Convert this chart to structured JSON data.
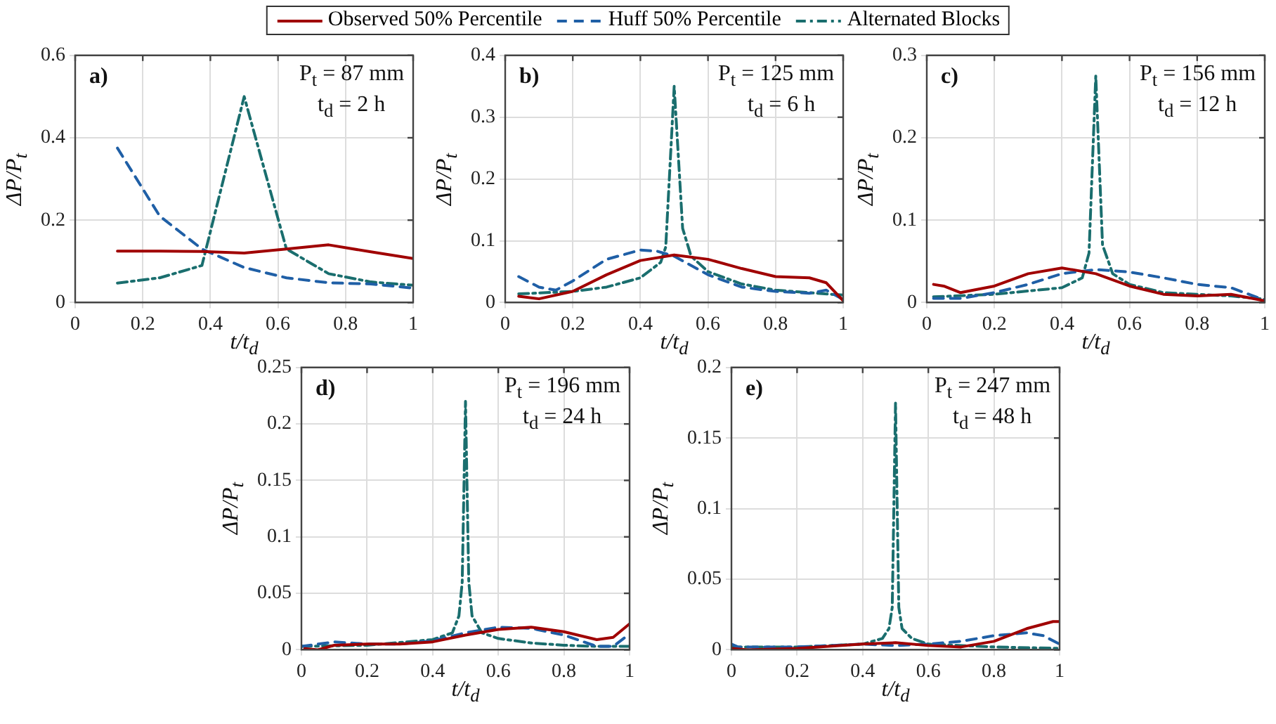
{
  "chart_data": [
    {
      "type": "line",
      "xlabel": "t/t$_{d}$",
      "ylabel": "ΔP/P$_{t}$",
      "annotations": [
        "a)",
        "P$_{t}$ = 87 mm",
        "t$_{d}$ = 2 h"
      ],
      "xlim": [
        0,
        1
      ],
      "xticks": [
        0,
        0.2,
        0.4,
        0.6,
        0.8,
        1
      ],
      "ylim": [
        0,
        0.6
      ],
      "yticks": [
        0,
        0.2,
        0.4,
        0.6
      ],
      "grid": true,
      "legend": "top",
      "marker": "none",
      "series": [
        {
          "name": "Observed 50% Percentile",
          "color": "#a00000",
          "line_style": "solid",
          "x": [
            0.125,
            0.25,
            0.375,
            0.5,
            0.625,
            0.75,
            0.875,
            1
          ],
          "values": [
            0.125,
            0.125,
            0.124,
            0.12,
            0.13,
            0.14,
            0.123,
            0.107
          ]
        },
        {
          "name": "Huff 50% Percentile",
          "color": "#1f5fa6",
          "line_style": "dashed",
          "x": [
            0.125,
            0.25,
            0.375,
            0.5,
            0.625,
            0.75,
            0.875,
            1
          ],
          "values": [
            0.375,
            0.21,
            0.13,
            0.085,
            0.06,
            0.048,
            0.045,
            0.035
          ]
        },
        {
          "name": "Alternated Blocks",
          "color": "#1a6e6e",
          "line_style": "dashdot",
          "x": [
            0.125,
            0.25,
            0.375,
            0.5,
            0.625,
            0.75,
            0.875,
            1
          ],
          "values": [
            0.047,
            0.06,
            0.09,
            0.5,
            0.13,
            0.07,
            0.05,
            0.042
          ]
        }
      ]
    },
    {
      "type": "line",
      "xlabel": "t/t$_{d}$",
      "ylabel": "ΔP/P$_{t}$",
      "annotations": [
        "b)",
        "P$_{t}$ = 125 mm",
        "t$_{d}$ = 6 h"
      ],
      "xlim": [
        0,
        1
      ],
      "xticks": [
        0,
        0.2,
        0.4,
        0.6,
        0.8,
        1
      ],
      "ylim": [
        0,
        0.4
      ],
      "yticks": [
        0,
        0.1,
        0.2,
        0.3,
        0.4
      ],
      "grid": true,
      "legend": false,
      "marker": "none",
      "series": [
        {
          "color": "#a00000",
          "line_style": "solid",
          "x": [
            0.04,
            0.1,
            0.2,
            0.3,
            0.4,
            0.5,
            0.6,
            0.7,
            0.8,
            0.9,
            0.95,
            1
          ],
          "values": [
            0.01,
            0.006,
            0.018,
            0.045,
            0.068,
            0.077,
            0.07,
            0.055,
            0.042,
            0.04,
            0.032,
            0.003
          ]
        },
        {
          "color": "#1f5fa6",
          "line_style": "dashed",
          "x": [
            0.04,
            0.1,
            0.15,
            0.2,
            0.3,
            0.4,
            0.45,
            0.5,
            0.6,
            0.7,
            0.8,
            0.9,
            0.95,
            1
          ],
          "values": [
            0.042,
            0.025,
            0.02,
            0.035,
            0.07,
            0.085,
            0.083,
            0.075,
            0.045,
            0.025,
            0.018,
            0.015,
            0.02,
            0.005
          ]
        },
        {
          "color": "#1a6e6e",
          "line_style": "dashdot",
          "x": [
            0.04,
            0.2,
            0.3,
            0.4,
            0.46,
            0.475,
            0.5,
            0.525,
            0.55,
            0.6,
            0.7,
            0.8,
            0.9,
            1
          ],
          "values": [
            0.014,
            0.018,
            0.025,
            0.04,
            0.065,
            0.09,
            0.35,
            0.12,
            0.075,
            0.05,
            0.03,
            0.02,
            0.016,
            0.012
          ]
        }
      ]
    },
    {
      "type": "line",
      "xlabel": "t/t$_{d}$",
      "ylabel": "ΔP/P$_{t}$",
      "annotations": [
        "c)",
        "P$_{t}$ = 156 mm",
        "t$_{d}$ = 12 h"
      ],
      "xlim": [
        0,
        1
      ],
      "xticks": [
        0,
        0.2,
        0.4,
        0.6,
        0.8,
        1
      ],
      "ylim": [
        0,
        0.3
      ],
      "yticks": [
        0,
        0.1,
        0.2,
        0.3
      ],
      "grid": true,
      "legend": false,
      "marker": "none",
      "series": [
        {
          "color": "#a00000",
          "line_style": "solid",
          "x": [
            0.02,
            0.05,
            0.1,
            0.2,
            0.3,
            0.4,
            0.5,
            0.6,
            0.7,
            0.8,
            0.9,
            1
          ],
          "values": [
            0.022,
            0.02,
            0.012,
            0.02,
            0.035,
            0.042,
            0.035,
            0.02,
            0.01,
            0.008,
            0.01,
            0.002
          ]
        },
        {
          "color": "#1f5fa6",
          "line_style": "dashed",
          "x": [
            0.02,
            0.1,
            0.2,
            0.3,
            0.4,
            0.5,
            0.6,
            0.7,
            0.8,
            0.9,
            1
          ],
          "values": [
            0.005,
            0.005,
            0.012,
            0.022,
            0.035,
            0.04,
            0.037,
            0.03,
            0.022,
            0.018,
            0.003
          ]
        },
        {
          "color": "#1a6e6e",
          "line_style": "dashdot",
          "x": [
            0.02,
            0.2,
            0.4,
            0.46,
            0.48,
            0.5,
            0.52,
            0.55,
            0.6,
            0.7,
            0.8,
            0.9,
            1
          ],
          "values": [
            0.007,
            0.01,
            0.018,
            0.03,
            0.06,
            0.275,
            0.07,
            0.035,
            0.022,
            0.012,
            0.01,
            0.008,
            0.004
          ]
        }
      ]
    },
    {
      "type": "line",
      "xlabel": "t/t$_{d}$",
      "ylabel": "ΔP/P$_{t}$",
      "annotations": [
        "d)",
        "P$_{t}$ = 196 mm",
        "t$_{d}$ = 24 h"
      ],
      "xlim": [
        0,
        1
      ],
      "xticks": [
        0,
        0.2,
        0.4,
        0.6,
        0.8,
        1
      ],
      "ylim": [
        0,
        0.25
      ],
      "yticks": [
        0,
        0.05,
        0.1,
        0.15,
        0.2,
        0.25
      ],
      "grid": true,
      "legend": false,
      "marker": "none",
      "series": [
        {
          "color": "#a00000",
          "line_style": "solid",
          "x": [
            0.01,
            0.05,
            0.1,
            0.2,
            0.3,
            0.4,
            0.5,
            0.6,
            0.7,
            0.8,
            0.9,
            0.95,
            1
          ],
          "values": [
            0.001,
            0,
            0.004,
            0.005,
            0.005,
            0.007,
            0.013,
            0.018,
            0.02,
            0.016,
            0.009,
            0.011,
            0.023
          ]
        },
        {
          "color": "#1f5fa6",
          "line_style": "dashed",
          "x": [
            0,
            0.1,
            0.2,
            0.3,
            0.4,
            0.5,
            0.6,
            0.7,
            0.8,
            0.9,
            0.95,
            1
          ],
          "values": [
            0.003,
            0.007,
            0.005,
            0.005,
            0.008,
            0.015,
            0.02,
            0.019,
            0.013,
            0.003,
            0.003,
            0.014
          ]
        },
        {
          "color": "#1a6e6e",
          "line_style": "dashdot",
          "x": [
            0,
            0.2,
            0.4,
            0.46,
            0.48,
            0.49,
            0.5,
            0.51,
            0.52,
            0.55,
            0.6,
            0.7,
            0.8,
            0.9,
            1
          ],
          "values": [
            0.003,
            0.004,
            0.009,
            0.015,
            0.03,
            0.06,
            0.22,
            0.06,
            0.03,
            0.015,
            0.01,
            0.006,
            0.004,
            0.003,
            0.003
          ]
        }
      ]
    },
    {
      "type": "line",
      "xlabel": "t/t$_{d}$",
      "ylabel": "ΔP/P$_{t}$",
      "annotations": [
        "e)",
        "P$_{t}$ = 247 mm",
        "t$_{d}$ = 48 h"
      ],
      "xlim": [
        0,
        1
      ],
      "xticks": [
        0,
        0.2,
        0.4,
        0.6,
        0.8,
        1
      ],
      "ylim": [
        0,
        0.2
      ],
      "yticks": [
        0,
        0.05,
        0.1,
        0.15,
        0.2
      ],
      "grid": true,
      "legend": false,
      "marker": "none",
      "series": [
        {
          "color": "#a00000",
          "line_style": "solid",
          "x": [
            0,
            0.05,
            0.2,
            0.4,
            0.5,
            0.6,
            0.7,
            0.8,
            0.9,
            0.98,
            1
          ],
          "values": [
            0.001,
            0,
            0.001,
            0.004,
            0.005,
            0.003,
            0.002,
            0.006,
            0.015,
            0.02,
            0.02
          ]
        },
        {
          "color": "#1f5fa6",
          "line_style": "dashed",
          "x": [
            0,
            0.02,
            0.2,
            0.4,
            0.5,
            0.6,
            0.7,
            0.8,
            0.9,
            0.95,
            1
          ],
          "values": [
            0.004,
            0.002,
            0.002,
            0.004,
            0.003,
            0.004,
            0.006,
            0.01,
            0.012,
            0.01,
            0.004
          ]
        },
        {
          "color": "#1a6e6e",
          "line_style": "dashdot",
          "x": [
            0,
            0.2,
            0.4,
            0.46,
            0.48,
            0.49,
            0.5,
            0.51,
            0.52,
            0.55,
            0.6,
            0.8,
            1
          ],
          "values": [
            0.002,
            0.002,
            0.004,
            0.008,
            0.015,
            0.03,
            0.175,
            0.03,
            0.015,
            0.008,
            0.004,
            0.002,
            0.001
          ]
        }
      ]
    }
  ]
}
